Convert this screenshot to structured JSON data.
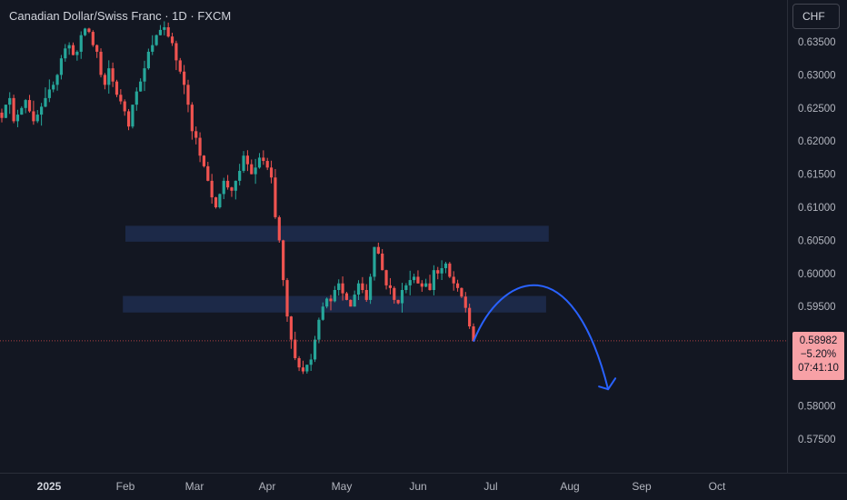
{
  "header": {
    "title": "Canadian Dollar/Swiss Franc · 1D · FXCM",
    "currency_button": "CHF"
  },
  "last_price": {
    "price": "0.58982",
    "change": "−5.20%",
    "countdown": "07:41:10",
    "color": "#f7a1a6"
  },
  "colors": {
    "background": "#131722",
    "up": "#26a69a",
    "down": "#ef5350",
    "zone": "#1e2b4d",
    "arrow": "#2962ff"
  },
  "chart_data": {
    "type": "candlestick",
    "symbol": "CADCHF",
    "interval": "1D",
    "ylim": [
      0.5715,
      0.6385
    ],
    "y_ticks": [
      "0.63500",
      "0.63000",
      "0.62500",
      "0.62000",
      "0.61500",
      "0.61000",
      "0.60500",
      "0.60000",
      "0.59500",
      "0.58000",
      "0.57500"
    ],
    "x_ticks": [
      "2025",
      "Feb",
      "Mar",
      "Apr",
      "May",
      "Jun",
      "Jul",
      "Aug",
      "Sep",
      "Oct"
    ],
    "close_path": [
      0.6235,
      0.6255,
      0.6265,
      0.623,
      0.624,
      0.625,
      0.6262,
      0.6245,
      0.623,
      0.624,
      0.6252,
      0.6265,
      0.6278,
      0.6285,
      0.63,
      0.6325,
      0.634,
      0.6345,
      0.633,
      0.6335,
      0.636,
      0.637,
      0.6365,
      0.6345,
      0.6335,
      0.63,
      0.6285,
      0.631,
      0.629,
      0.627,
      0.626,
      0.6245,
      0.6222,
      0.6255,
      0.6275,
      0.629,
      0.631,
      0.6335,
      0.6345,
      0.636,
      0.6368,
      0.6372,
      0.6358,
      0.6348,
      0.6322,
      0.6305,
      0.6285,
      0.6255,
      0.6215,
      0.6205,
      0.6178,
      0.6162,
      0.614,
      0.6115,
      0.61,
      0.612,
      0.614,
      0.613,
      0.6125,
      0.614,
      0.6155,
      0.6178,
      0.6165,
      0.615,
      0.616,
      0.6175,
      0.617,
      0.616,
      0.6145,
      0.6085,
      0.605,
      0.599,
      0.5935,
      0.59,
      0.5872,
      0.5858,
      0.5852,
      0.5862,
      0.587,
      0.59,
      0.593,
      0.595,
      0.5962,
      0.5958,
      0.5975,
      0.5985,
      0.597,
      0.596,
      0.595,
      0.5968,
      0.5985,
      0.5975,
      0.596,
      0.5995,
      0.604,
      0.603,
      0.6005,
      0.5982,
      0.5978,
      0.596,
      0.5955,
      0.5975,
      0.5982,
      0.599,
      0.5995,
      0.5985,
      0.598,
      0.5985,
      0.5975,
      0.6005,
      0.6,
      0.6008,
      0.6015,
      0.5995,
      0.5985,
      0.5978,
      0.5965,
      0.5948,
      0.592,
      0.5898
    ],
    "zones": [
      {
        "y_low": 0.6048,
        "y_high": 0.6072,
        "x_start": "Jan 31",
        "x_end": "Jul 23"
      },
      {
        "y_low": 0.5941,
        "y_high": 0.5966,
        "x_start": "Jan 30",
        "x_end": "Jul 22"
      }
    ],
    "projection": [
      {
        "x": "Jun 24",
        "y": 0.5898
      },
      {
        "x": "Jul 18",
        "y": 0.6002
      },
      {
        "x": "Aug 17",
        "y": 0.5825
      }
    ],
    "last_price_line": 0.58982
  }
}
